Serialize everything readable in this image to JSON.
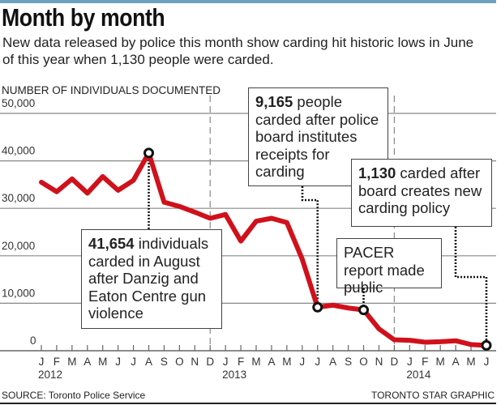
{
  "header": {
    "title": "Month by month",
    "subtitle": "New data released by police this month show carding hit historic lows in June of this year when 1,130 people were carded."
  },
  "chart_data": {
    "type": "line",
    "ylabel": "NUMBER OF INDIVIDUALS DOCUMENTED",
    "ylim": [
      0,
      50000
    ],
    "yticks": [
      "0",
      "10,000",
      "20,000",
      "30,000",
      "40,000",
      "50,000"
    ],
    "ytick_values": [
      0,
      10000,
      20000,
      30000,
      40000,
      50000
    ],
    "grid": true,
    "line_color": "#d0111b",
    "categories": [
      "J",
      "F",
      "M",
      "A",
      "M",
      "J",
      "J",
      "A",
      "S",
      "O",
      "N",
      "D",
      "J",
      "F",
      "M",
      "A",
      "M",
      "J",
      "J",
      "A",
      "S",
      "O",
      "N",
      "D",
      "J",
      "F",
      "M",
      "A",
      "M",
      "J"
    ],
    "year_labels": [
      {
        "label": "2012",
        "month_index": 0
      },
      {
        "label": "2013",
        "month_index": 12
      },
      {
        "label": "2014",
        "month_index": 24
      }
    ],
    "dashed_dividers_at_month_index": [
      11,
      23
    ],
    "values": [
      35500,
      33500,
      36200,
      33200,
      36700,
      33800,
      35900,
      41654,
      31300,
      30400,
      29200,
      27900,
      28700,
      23100,
      27300,
      27900,
      27000,
      19300,
      9165,
      9600,
      9000,
      8600,
      4600,
      2300,
      2200,
      1800,
      1900,
      2100,
      1300,
      1130
    ],
    "highlighted_points": [
      7,
      18,
      21,
      29
    ],
    "annotations": [
      {
        "bold": "41,654",
        "text": " individuals carded in August after Danzig and Eaton Centre gun violence",
        "month_index": 7
      },
      {
        "bold": "9,165",
        "text": " people carded after police board institutes receipts for carding",
        "month_index": 18
      },
      {
        "bold": "",
        "text": "PACER report made public",
        "month_index": 21
      },
      {
        "bold": "1,130",
        "text": " carded after board creates new carding policy",
        "month_index": 29
      }
    ]
  },
  "footer": {
    "source": "SOURCE: Toronto Police Service",
    "credit": "TORONTO STAR GRAPHIC"
  },
  "colors": {
    "topbar": "#6fa1bf",
    "line": "#d0111b"
  }
}
